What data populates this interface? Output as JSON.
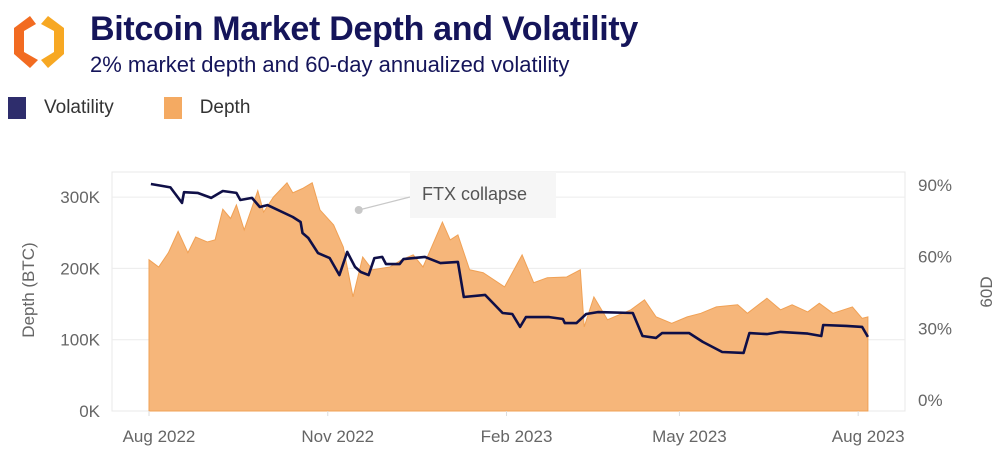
{
  "header": {
    "title": "Bitcoin Market Depth and Volatility",
    "subtitle": "2% market depth and 60-day annualized volatility",
    "logo_colors": [
      "#f7a823",
      "#f26b21"
    ]
  },
  "legend": [
    {
      "label": "Volatility",
      "color": "#2e2d6c"
    },
    {
      "label": "Depth",
      "color": "#f4aa62"
    }
  ],
  "chart_data": {
    "type": "area+line",
    "grid": true,
    "legend_position": "top-left",
    "x_ticks": [
      "Aug 2022",
      "Nov 2022",
      "Feb 2023",
      "May 2023",
      "Aug 2023"
    ],
    "x_tick_dates": [
      "2022-08-01",
      "2022-11-01",
      "2023-02-01",
      "2023-05-01",
      "2023-08-01"
    ],
    "y_left": {
      "label": "Depth (BTC)",
      "ticks": [
        "0K",
        "100K",
        "200K",
        "300K"
      ],
      "range": [
        0,
        300000
      ]
    },
    "y_right": {
      "label": "60D",
      "ticks": [
        "0%",
        "30%",
        "60%",
        "90%"
      ],
      "range": [
        0,
        90
      ]
    },
    "annotation": {
      "text": "FTX collapse",
      "date": "2022-11-19",
      "value": 283000
    },
    "colors": {
      "depth_fill": "#f6b67a",
      "depth_stroke": "#f0a155",
      "volatility": "#0f0f47"
    },
    "series": [
      {
        "name": "Depth",
        "axis": "left",
        "type": "area",
        "points": [
          [
            "2022-08-01",
            212000
          ],
          [
            "2022-08-06",
            202000
          ],
          [
            "2022-08-11",
            222000
          ],
          [
            "2022-08-16",
            252000
          ],
          [
            "2022-08-21",
            222000
          ],
          [
            "2022-08-25",
            244000
          ],
          [
            "2022-08-31",
            237000
          ],
          [
            "2022-09-04",
            240000
          ],
          [
            "2022-09-08",
            283000
          ],
          [
            "2022-09-12",
            270000
          ],
          [
            "2022-09-15",
            289000
          ],
          [
            "2022-09-19",
            254000
          ],
          [
            "2022-09-26",
            309000
          ],
          [
            "2022-09-29",
            279000
          ],
          [
            "2022-10-04",
            300000
          ],
          [
            "2022-10-11",
            320000
          ],
          [
            "2022-10-14",
            306000
          ],
          [
            "2022-10-19",
            312000
          ],
          [
            "2022-10-24",
            320000
          ],
          [
            "2022-10-28",
            282000
          ],
          [
            "2022-11-04",
            261000
          ],
          [
            "2022-11-09",
            230000
          ],
          [
            "2022-11-14",
            160000
          ],
          [
            "2022-11-19",
            216000
          ],
          [
            "2022-11-24",
            198000
          ],
          [
            "2022-12-03",
            202000
          ],
          [
            "2022-12-09",
            212000
          ],
          [
            "2022-12-15",
            219000
          ],
          [
            "2022-12-20",
            202000
          ],
          [
            "2022-12-30",
            265000
          ],
          [
            "2023-01-03",
            240000
          ],
          [
            "2023-01-07",
            247000
          ],
          [
            "2023-01-13",
            198000
          ],
          [
            "2023-01-20",
            194000
          ],
          [
            "2023-01-31",
            174000
          ],
          [
            "2023-02-09",
            219000
          ],
          [
            "2023-02-15",
            180000
          ],
          [
            "2023-02-22",
            187000
          ],
          [
            "2023-03-04",
            188000
          ],
          [
            "2023-03-11",
            198000
          ],
          [
            "2023-03-13",
            118000
          ],
          [
            "2023-03-18",
            160000
          ],
          [
            "2023-03-25",
            128000
          ],
          [
            "2023-04-06",
            142000
          ],
          [
            "2023-04-13",
            156000
          ],
          [
            "2023-04-19",
            132000
          ],
          [
            "2023-04-27",
            123000
          ],
          [
            "2023-05-05",
            132000
          ],
          [
            "2023-05-12",
            137000
          ],
          [
            "2023-05-20",
            146000
          ],
          [
            "2023-05-31",
            149000
          ],
          [
            "2023-06-05",
            137000
          ],
          [
            "2023-06-15",
            158000
          ],
          [
            "2023-06-22",
            142000
          ],
          [
            "2023-06-28",
            149000
          ],
          [
            "2023-07-06",
            139000
          ],
          [
            "2023-07-12",
            151000
          ],
          [
            "2023-07-19",
            137000
          ],
          [
            "2023-07-29",
            146000
          ],
          [
            "2023-08-03",
            130000
          ],
          [
            "2023-08-06",
            132000
          ]
        ]
      },
      {
        "name": "Volatility",
        "axis": "right",
        "type": "line",
        "points": [
          [
            "2022-08-02",
            90.4
          ],
          [
            "2022-08-08",
            89.6
          ],
          [
            "2022-08-12",
            89.0
          ],
          [
            "2022-08-18",
            82.5
          ],
          [
            "2022-08-19",
            87.0
          ],
          [
            "2022-08-26",
            86.7
          ],
          [
            "2022-09-02",
            84.6
          ],
          [
            "2022-09-08",
            87.5
          ],
          [
            "2022-09-15",
            86.7
          ],
          [
            "2022-09-17",
            83.7
          ],
          [
            "2022-09-23",
            84.6
          ],
          [
            "2022-09-27",
            80.8
          ],
          [
            "2022-10-01",
            81.6
          ],
          [
            "2022-10-14",
            76.6
          ],
          [
            "2022-10-18",
            74.5
          ],
          [
            "2022-10-19",
            69.9
          ],
          [
            "2022-10-22",
            67.8
          ],
          [
            "2022-10-27",
            61.5
          ],
          [
            "2022-11-02",
            59.4
          ],
          [
            "2022-11-07",
            52.3
          ],
          [
            "2022-11-11",
            62.0
          ],
          [
            "2022-11-15",
            55.7
          ],
          [
            "2022-11-18",
            53.6
          ],
          [
            "2022-11-22",
            52.3
          ],
          [
            "2022-11-25",
            59.4
          ],
          [
            "2022-11-29",
            59.9
          ],
          [
            "2022-12-01",
            56.9
          ],
          [
            "2022-12-08",
            56.9
          ],
          [
            "2022-12-10",
            59.0
          ],
          [
            "2022-12-21",
            59.9
          ],
          [
            "2022-12-29",
            57.3
          ],
          [
            "2023-01-07",
            57.8
          ],
          [
            "2023-01-10",
            43.1
          ],
          [
            "2023-01-21",
            44.0
          ],
          [
            "2023-01-30",
            36.4
          ],
          [
            "2023-02-04",
            36.0
          ],
          [
            "2023-02-08",
            30.6
          ],
          [
            "2023-02-11",
            34.7
          ],
          [
            "2023-02-23",
            34.7
          ],
          [
            "2023-03-02",
            33.9
          ],
          [
            "2023-03-03",
            32.2
          ],
          [
            "2023-03-09",
            32.2
          ],
          [
            "2023-03-14",
            36.0
          ],
          [
            "2023-03-20",
            36.8
          ],
          [
            "2023-04-07",
            36.4
          ],
          [
            "2023-04-12",
            26.8
          ],
          [
            "2023-04-19",
            26.0
          ],
          [
            "2023-04-22",
            28.0
          ],
          [
            "2023-05-06",
            28.0
          ],
          [
            "2023-05-13",
            24.3
          ],
          [
            "2023-05-23",
            20.1
          ],
          [
            "2023-06-03",
            19.7
          ],
          [
            "2023-06-06",
            28.0
          ],
          [
            "2023-06-15",
            27.6
          ],
          [
            "2023-06-22",
            28.5
          ],
          [
            "2023-07-06",
            27.8
          ],
          [
            "2023-07-13",
            26.8
          ],
          [
            "2023-07-14",
            31.4
          ],
          [
            "2023-07-26",
            31.0
          ],
          [
            "2023-08-03",
            30.6
          ],
          [
            "2023-08-06",
            26.4
          ]
        ]
      }
    ]
  }
}
